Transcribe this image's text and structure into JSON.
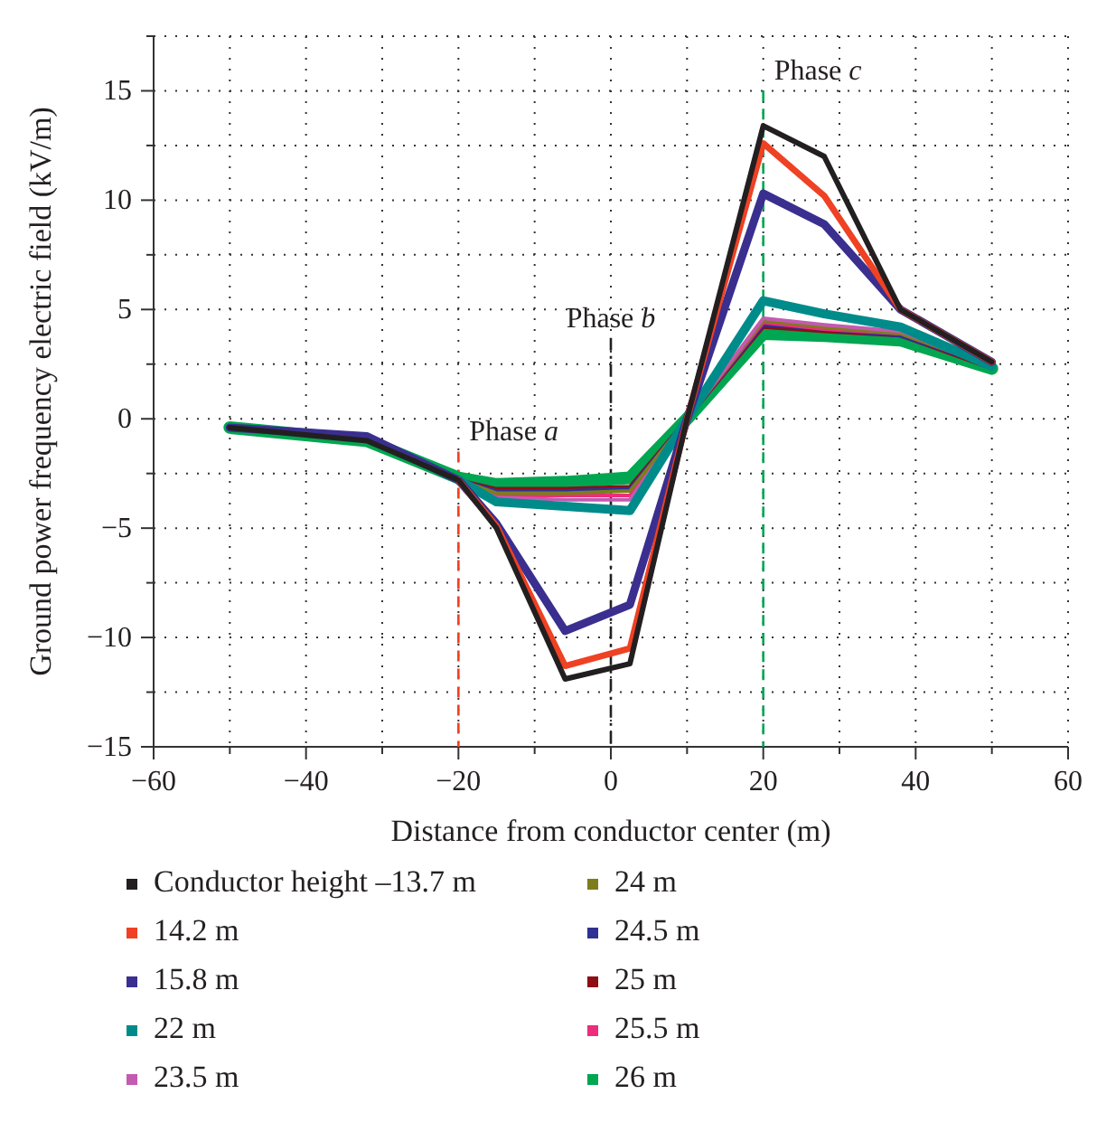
{
  "chart_data": {
    "type": "line",
    "xlabel": "Distance from conductor center (m)",
    "ylabel": "Ground power frequency electric field (kV/m)",
    "x": [
      -50,
      -32,
      -20,
      -15,
      -6,
      2.5,
      10,
      20,
      28,
      38,
      50
    ],
    "xlim": [
      -60,
      60
    ],
    "xticks": [
      -60,
      {
        "value": -50,
        "label": null
      },
      -40,
      {
        "value": -30,
        "label": null
      },
      -20,
      {
        "value": -10,
        "label": null
      },
      0,
      {
        "value": 10,
        "label": null
      },
      20,
      {
        "value": 30,
        "label": null
      },
      40,
      {
        "value": 50,
        "label": null
      },
      60
    ],
    "ylim": [
      -15,
      17.5
    ],
    "yticks": [
      -15,
      {
        "value": -12.5,
        "label": null
      },
      -10,
      {
        "value": -7.5,
        "label": null
      },
      -5,
      {
        "value": -2.5,
        "label": null
      },
      0,
      {
        "value": 2.5,
        "label": null
      },
      5,
      {
        "value": 7.5,
        "label": null
      },
      10,
      {
        "value": 12.5,
        "label": null
      },
      15,
      {
        "value": 17.5,
        "label": null
      }
    ],
    "grid": true,
    "legend": "bottom",
    "line_style": "solid",
    "series": [
      {
        "name": "Conductor height –13.7 m",
        "color": "#231f20",
        "values": [
          -0.4,
          -1.0,
          -2.8,
          -5.0,
          -11.9,
          -11.2,
          0,
          13.4,
          12.0,
          5.0,
          2.6
        ]
      },
      {
        "name": "14.2 m",
        "color": "#ef4123",
        "values": [
          null,
          null,
          -2.8,
          -4.9,
          -11.3,
          -10.5,
          0,
          12.6,
          10.2,
          5.0,
          2.6
        ]
      },
      {
        "name": "15.8 m",
        "color": "#3a2f8f",
        "values": [
          -0.4,
          -0.8,
          -2.8,
          -4.8,
          -9.7,
          -8.5,
          0,
          10.3,
          8.9,
          5.0,
          2.6
        ]
      },
      {
        "name": "22 m",
        "color": "#008b8b",
        "values": [
          null,
          null,
          -2.8,
          -3.8,
          -4.0,
          -4.2,
          0,
          5.4,
          4.8,
          4.2,
          2.4
        ]
      },
      {
        "name": "23.5 m",
        "color": "#c35bb0",
        "values": [
          null,
          null,
          -2.8,
          -3.6,
          -3.7,
          -3.7,
          0,
          4.6,
          4.3,
          4.0,
          2.4
        ]
      },
      {
        "name": "24 m",
        "color": "#7d7d1e",
        "values": [
          null,
          null,
          -2.8,
          -3.4,
          -3.4,
          -3.3,
          0,
          4.5,
          4.2,
          3.9,
          2.4
        ]
      },
      {
        "name": "24.5 m",
        "color": "#2e3192",
        "values": [
          null,
          null,
          -2.8,
          -3.3,
          -3.3,
          -3.2,
          0,
          4.3,
          4.1,
          3.8,
          2.4
        ]
      },
      {
        "name": "25 m",
        "color": "#8b0f14",
        "values": [
          null,
          null,
          -2.8,
          -3.2,
          -3.2,
          -3.1,
          0,
          4.2,
          4.0,
          3.8,
          2.3
        ]
      },
      {
        "name": "25.5 m",
        "color": "#ec2d7a",
        "values": [
          null,
          null,
          -2.8,
          -3.5,
          -3.5,
          -3.5,
          0,
          4.4,
          4.1,
          3.9,
          2.4
        ]
      },
      {
        "name": "26 m",
        "color": "#00a651",
        "values": [
          -0.4,
          -1.0,
          -2.7,
          -3.0,
          -2.9,
          -2.7,
          0,
          3.9,
          3.8,
          3.6,
          2.3
        ]
      }
    ],
    "ref_lines": [
      {
        "axis": "x",
        "value": -20,
        "label": "Phase a",
        "color": "#ef4123",
        "line_style": "dashed"
      },
      {
        "axis": "x",
        "value": 0,
        "label": "Phase b",
        "color": "#231f20",
        "line_style": "dashdot"
      },
      {
        "axis": "x",
        "value": 20,
        "label": "Phase c",
        "color": "#00a651",
        "line_style": "dashed"
      }
    ]
  }
}
